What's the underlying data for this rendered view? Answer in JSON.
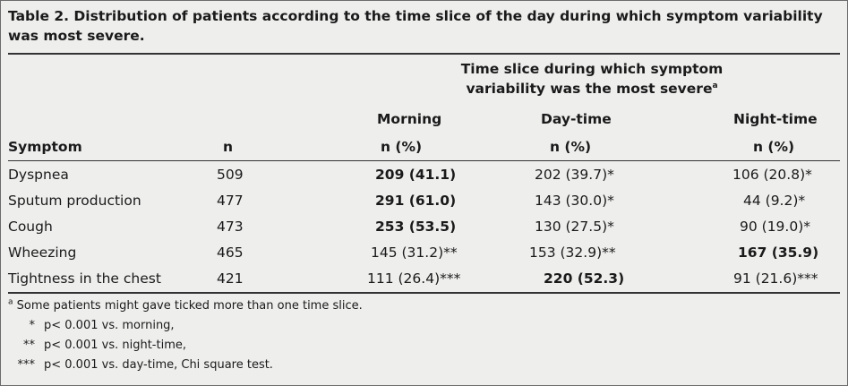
{
  "table": {
    "caption": "Table 2. Distribution of patients according to the time slice of the day during which symptom variability was most severe.",
    "header": {
      "group_line1": "Time slice during which symptom",
      "group_line2": "variability was the most severe",
      "group_sup": "a",
      "symptom": "Symptom",
      "n": "n",
      "morning": "Morning",
      "daytime": "Day-time",
      "nighttime": "Night-time",
      "pct": "n (%)"
    },
    "rows": [
      {
        "symptom": "Dyspnea",
        "n": "509",
        "morning": "209 (41.1)",
        "daytime": "202 (39.7)*",
        "nighttime": "106 (20.8)*"
      },
      {
        "symptom": "Sputum production",
        "n": "477",
        "morning": "291 (61.0)",
        "daytime": "143 (30.0)*",
        "nighttime": "44 (9.2)*"
      },
      {
        "symptom": "Cough",
        "n": "473",
        "morning": "253 (53.5)",
        "daytime": "130 (27.5)*",
        "nighttime": "90 (19.0)*"
      },
      {
        "symptom": "Wheezing",
        "n": "465",
        "morning": "145 (31.2)**",
        "daytime": "153 (32.9)**",
        "nighttime": "167 (35.9)"
      },
      {
        "symptom": "Tightness in the chest",
        "n": "421",
        "morning": "111 (26.4)***",
        "daytime": "220 (52.3)",
        "nighttime": "91 (21.6)***"
      }
    ],
    "footnotes": {
      "a_mark": "a",
      "a_text": "Some patients might gave ticked more than one time slice.",
      "star1_mark": "*",
      "star1_text": "p< 0.001 vs. morning,",
      "star2_mark": "**",
      "star2_text": "p< 0.001 vs. night-time,",
      "star3_mark": "***",
      "star3_text": "p< 0.001 vs. day-time, Chi square test."
    }
  }
}
